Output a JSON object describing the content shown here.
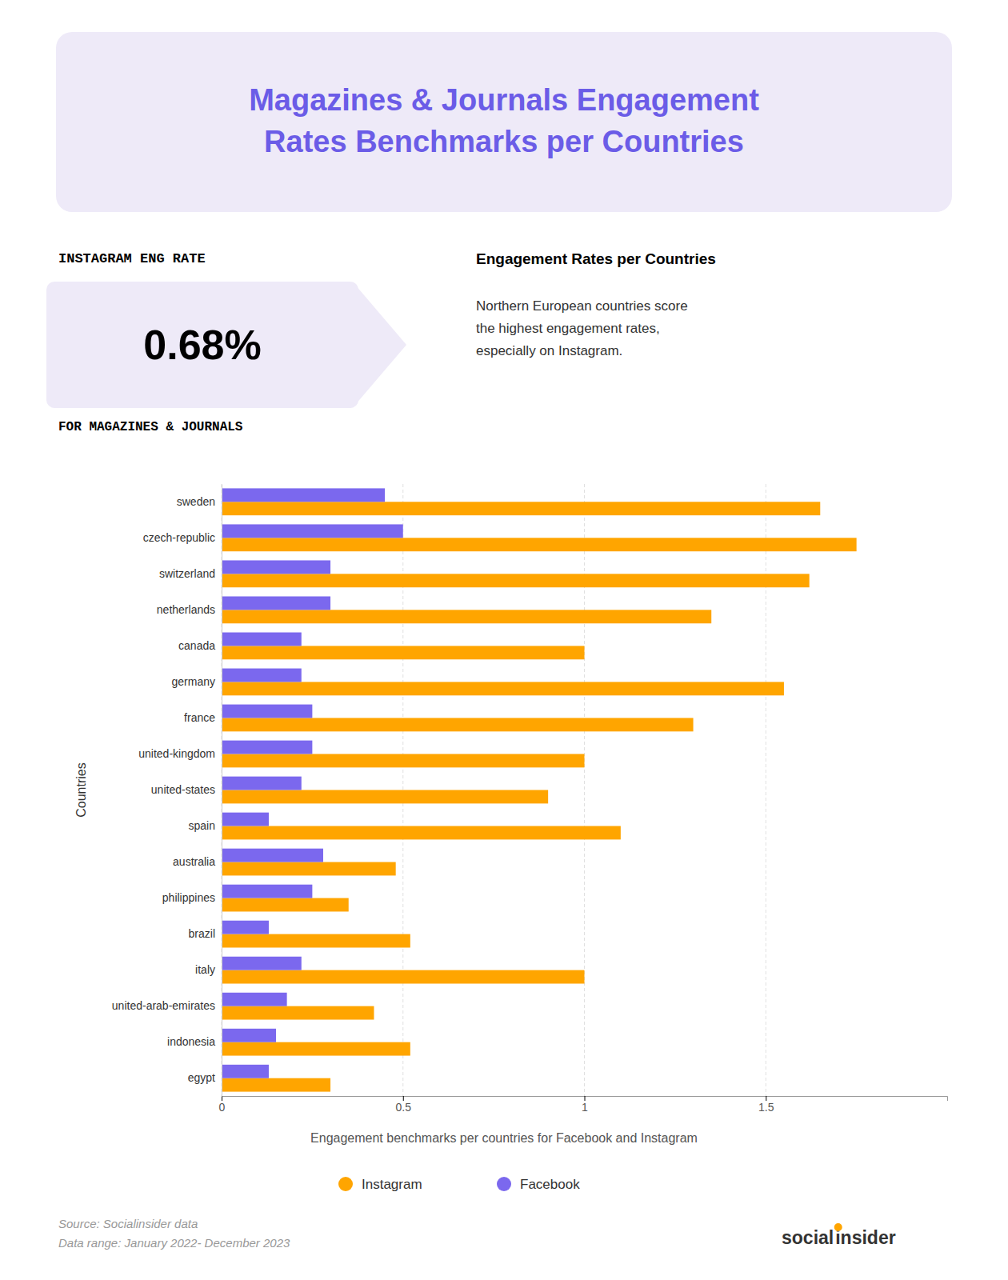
{
  "chart_data": {
    "type": "bar",
    "orientation": "horizontal",
    "title": "Magazines & Journals Engagement\nRates Benchmarks per Countries",
    "y_label": "Countries",
    "categories": [
      "sweden",
      "czech-republic",
      "switzerland",
      "netherlands",
      "canada",
      "germany",
      "france",
      "united-kingdom",
      "united-states",
      "spain",
      "australia",
      "philippines",
      "brazil",
      "italy",
      "united-arab-emirates",
      "indonesia",
      "egypt"
    ],
    "series": [
      {
        "name": "Instagram",
        "color": "#FFA500",
        "values": [
          1.65,
          1.75,
          1.62,
          1.35,
          1.0,
          1.55,
          1.3,
          1.0,
          0.9,
          1.1,
          0.48,
          0.35,
          0.52,
          1.0,
          0.42,
          0.52,
          0.3
        ]
      },
      {
        "name": "Facebook",
        "color": "#7B68EE",
        "values": [
          0.45,
          0.5,
          0.3,
          0.3,
          0.22,
          0.22,
          0.25,
          0.25,
          0.22,
          0.13,
          0.28,
          0.25,
          0.13,
          0.22,
          0.18,
          0.15,
          0.13
        ]
      }
    ],
    "xlim": [
      0,
      2.0
    ],
    "xticks": [
      0,
      0.5,
      1,
      1.5
    ],
    "grid": true,
    "legend": "bottom",
    "annotations": [
      "INSTAGRAM ENG RATE",
      "0.68%",
      "FOR MAGAZINES & JOURNALS",
      "Engagement Rates per Countries",
      "Northern European countries score\nthe highest engagement rates,\nespecially on Instagram.",
      "Engagement benchmarks per countries for Facebook and Instagram",
      "Source: Socialinsider data\nData range: January 2022- December 2023",
      "social",
      "insider"
    ]
  }
}
